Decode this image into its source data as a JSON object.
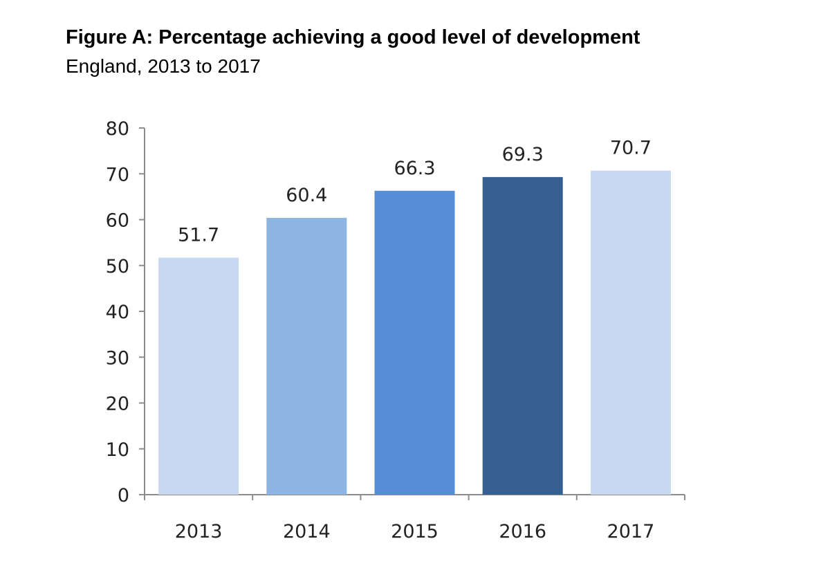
{
  "chart_data": {
    "type": "bar",
    "title": "Figure A: Percentage achieving a good level of development",
    "subtitle": "England, 2013 to 2017",
    "xlabel": "",
    "ylabel": "",
    "categories": [
      "2013",
      "2014",
      "2015",
      "2016",
      "2017"
    ],
    "values": [
      51.7,
      60.4,
      66.3,
      69.3,
      70.7
    ],
    "data_labels": [
      "51.7",
      "60.4",
      "66.3",
      "69.3",
      "70.7"
    ],
    "colors": [
      "#c6d9f1",
      "#8eb4e3",
      "#558ed5",
      "#376092",
      "#c6d9f1"
    ],
    "ylim": [
      0,
      80
    ],
    "yticks": [
      0,
      10,
      20,
      30,
      40,
      50,
      60,
      70,
      80
    ],
    "grid": false,
    "legend": "none"
  }
}
